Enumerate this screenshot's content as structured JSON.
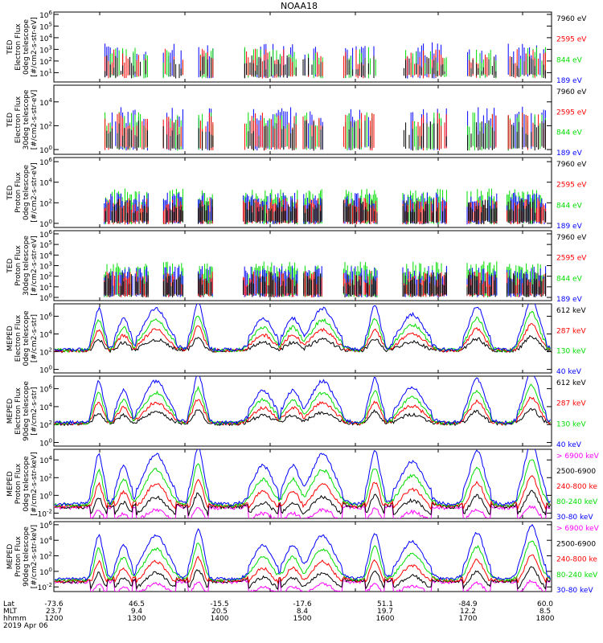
{
  "title": "NOAA18",
  "colors": {
    "black": "#000000",
    "red": "#ff0000",
    "green": "#00dd00",
    "blue": "#0000ff",
    "magenta": "#ff00ff"
  },
  "chart_data": [
    {
      "type": "line",
      "ylabel": [
        "TED",
        "Electron Flux",
        "0deg telescope",
        "[#/cm2-s-str-eV]"
      ],
      "y_ticks": [
        "10^1",
        "10^2",
        "10^3",
        "10^4",
        "10^5",
        "10^6"
      ],
      "ylim_exp": [
        0.2,
        6.2
      ],
      "legend": [
        {
          "name": "7960 eV",
          "color": "black"
        },
        {
          "name": "2595 eV",
          "color": "red"
        },
        {
          "name": "844 eV",
          "color": "green"
        },
        {
          "name": "189 eV",
          "color": "blue"
        }
      ]
    },
    {
      "type": "line",
      "ylabel": [
        "TED",
        "Electron Flux",
        "30deg telescope",
        "[#/cm2-s-str-eV]"
      ],
      "y_ticks": [
        "10^0",
        "10^2",
        "10^4"
      ],
      "ylim_exp": [
        -0.4,
        5.4
      ],
      "legend": [
        {
          "name": "7960 eV",
          "color": "black"
        },
        {
          "name": "2595 eV",
          "color": "red"
        },
        {
          "name": "844 eV",
          "color": "green"
        },
        {
          "name": "189 eV",
          "color": "blue"
        }
      ]
    },
    {
      "type": "line",
      "ylabel": [
        "TED",
        "Proton Flux",
        "0deg telescope",
        "[#/cm2-s-str-eV]"
      ],
      "y_ticks": [
        "10^0",
        "10^2",
        "10^4",
        "10^6"
      ],
      "ylim_exp": [
        -0.4,
        6.4
      ],
      "legend": [
        {
          "name": "7960 eV",
          "color": "black"
        },
        {
          "name": "2595 eV",
          "color": "red"
        },
        {
          "name": "844 eV",
          "color": "green"
        },
        {
          "name": "189 eV",
          "color": "blue"
        }
      ]
    },
    {
      "type": "line",
      "ylabel": [
        "TED",
        "Proton Flux",
        "30deg telescope",
        "[#/cm2-s-str-eV]"
      ],
      "y_ticks": [
        "10^0",
        "10^1",
        "10^2",
        "10^3",
        "10^4",
        "10^5",
        "10^6"
      ],
      "ylim_exp": [
        -0.3,
        6.3
      ],
      "legend": [
        {
          "name": "7960 eV",
          "color": "black"
        },
        {
          "name": "2595 eV",
          "color": "red"
        },
        {
          "name": "844 eV",
          "color": "green"
        },
        {
          "name": "189 eV",
          "color": "blue"
        }
      ]
    },
    {
      "type": "line",
      "ylabel": [
        "MEPED",
        "Electron Flux",
        "0deg telescope",
        "[#/cm2-s-str]"
      ],
      "y_ticks": [
        "10^0",
        "10^2",
        "10^4",
        "10^6"
      ],
      "ylim_exp": [
        -0.4,
        7.4
      ],
      "legend": [
        {
          "name": "612 keV",
          "color": "black"
        },
        {
          "name": "287 keV",
          "color": "red"
        },
        {
          "name": "130 keV",
          "color": "green"
        },
        {
          "name": "40 keV",
          "color": "blue"
        }
      ]
    },
    {
      "type": "line",
      "ylabel": [
        "MEPED",
        "Electron Flux",
        "90deg telescope",
        "[#/cm2-s-str]"
      ],
      "y_ticks": [
        "10^0",
        "10^2",
        "10^4",
        "10^6"
      ],
      "ylim_exp": [
        -0.4,
        7.4
      ],
      "legend": [
        {
          "name": "612 keV",
          "color": "black"
        },
        {
          "name": "287 keV",
          "color": "red"
        },
        {
          "name": "130 keV",
          "color": "green"
        },
        {
          "name": "40 keV",
          "color": "blue"
        }
      ]
    },
    {
      "type": "line",
      "ylabel": [
        "MEPED",
        "Proton Flux",
        "0deg telescope",
        "[#/cm2-s-str-keV]"
      ],
      "y_ticks": [
        "10^-2",
        "10^0",
        "10^2",
        "10^4"
      ],
      "ylim_exp": [
        -2.6,
        5.2
      ],
      "legend": [
        {
          "name": "> 6900 keV",
          "color": "magenta"
        },
        {
          "name": "2500-6900",
          "color": "black"
        },
        {
          "name": "240-800 ke",
          "color": "red"
        },
        {
          "name": "80-240 keV",
          "color": "green"
        },
        {
          "name": "30-80 keV",
          "color": "blue"
        }
      ]
    },
    {
      "type": "line",
      "ylabel": [
        "MEPED",
        "Proton Flux",
        "90deg telescope",
        "[#/cm2-s-str-keV]"
      ],
      "y_ticks": [
        "10^-2",
        "10^0",
        "10^2",
        "10^4",
        "10^6"
      ],
      "ylim_exp": [
        -2.6,
        6.4
      ],
      "legend": [
        {
          "name": "> 6900 keV",
          "color": "magenta"
        },
        {
          "name": "2500-6900",
          "color": "black"
        },
        {
          "name": "240-800 ke",
          "color": "red"
        },
        {
          "name": "80-240 keV",
          "color": "green"
        },
        {
          "name": "30-80 keV",
          "color": "blue"
        }
      ]
    }
  ],
  "x_axis": {
    "row_labels": [
      "Lat",
      "MLT",
      "hhmm"
    ],
    "ticks": [
      {
        "lat": "-73.6",
        "mlt": "23.7",
        "hhmm": "1200"
      },
      {
        "lat": "46.5",
        "mlt": "9.4",
        "hhmm": "1300"
      },
      {
        "lat": "-15.5",
        "mlt": "20.5",
        "hhmm": "1400"
      },
      {
        "lat": "-17.6",
        "mlt": "8.4",
        "hhmm": "1500"
      },
      {
        "lat": "51.1",
        "mlt": "19.7",
        "hhmm": "1600"
      },
      {
        "lat": "-84.9",
        "mlt": "12.2",
        "hhmm": "1700"
      },
      {
        "lat": "60.0",
        "mlt": "8.5",
        "hhmm": "1800"
      }
    ],
    "date": "2019 Apr 06"
  }
}
